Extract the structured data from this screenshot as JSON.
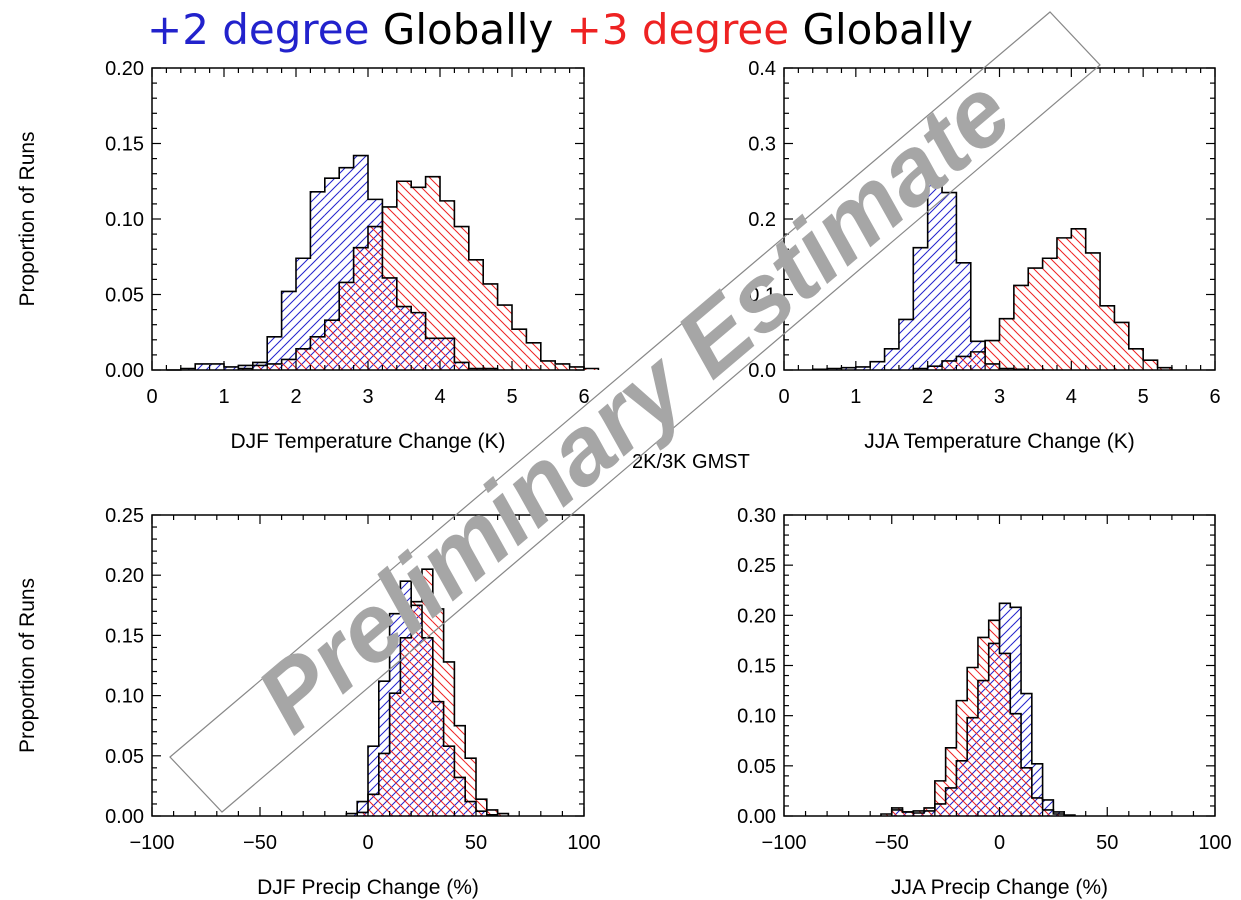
{
  "title": {
    "part1": "+2 degree",
    "part2": " Globally ",
    "part3": "+3 degree",
    "part4": " Globally"
  },
  "colors": {
    "blue": "#2222cc",
    "red": "#ee2222",
    "black": "#000000",
    "purple": "#aa55aa"
  },
  "center_label": "2K/3K GMST",
  "watermark": "Preliminary Estimate",
  "chart_data": [
    {
      "type": "histogram",
      "title": "",
      "xlabel": "DJF Temperature Change (K)",
      "ylabel": "Proportion of Runs",
      "xlim": [
        0,
        6
      ],
      "ylim": [
        0,
        0.2
      ],
      "xticks": [
        0,
        1,
        2,
        3,
        4,
        5,
        6
      ],
      "yticks": [
        0,
        0.05,
        0.1,
        0.15,
        0.2
      ],
      "ytick_labels": [
        "0.00",
        "0.05",
        "0.10",
        "0.15",
        "0.20"
      ],
      "bin_width": 0.2,
      "series": [
        {
          "color": "blue",
          "x_start": 0.2,
          "values": [
            0,
            0.001,
            0.004,
            0.004,
            0.002,
            0.003,
            0.005,
            0.022,
            0.052,
            0.074,
            0.118,
            0.127,
            0.134,
            0.142,
            0.113,
            0.061,
            0.042,
            0.038,
            0.021,
            0.021,
            0.005,
            0.001,
            0.001
          ]
        },
        {
          "color": "red",
          "x_start": 1.2,
          "values": [
            0.001,
            0.003,
            0.004,
            0.007,
            0.014,
            0.022,
            0.033,
            0.058,
            0.081,
            0.095,
            0.108,
            0.125,
            0.121,
            0.128,
            0.112,
            0.095,
            0.073,
            0.057,
            0.043,
            0.027,
            0.018,
            0.006,
            0.004,
            0.002,
            0.001
          ]
        }
      ]
    },
    {
      "type": "histogram",
      "title": "",
      "xlabel": "JJA Temperature Change (K)",
      "ylabel": "",
      "xlim": [
        0,
        6
      ],
      "ylim": [
        0,
        0.4
      ],
      "xticks": [
        0,
        1,
        2,
        3,
        4,
        5,
        6
      ],
      "yticks": [
        0,
        0.1,
        0.2,
        0.3,
        0.4
      ],
      "ytick_labels": [
        "0.0",
        "0.1",
        "0.2",
        "0.3",
        "0.4"
      ],
      "bin_width": 0.2,
      "series": [
        {
          "color": "blue",
          "x_start": 0.4,
          "values": [
            0.001,
            0.002,
            0.003,
            0.004,
            0.011,
            0.028,
            0.067,
            0.162,
            0.247,
            0.235,
            0.142,
            0.038,
            0.008,
            0.002,
            0.001
          ]
        },
        {
          "color": "red",
          "x_start": 1.8,
          "values": [
            0.002,
            0.005,
            0.012,
            0.018,
            0.024,
            0.039,
            0.068,
            0.112,
            0.135,
            0.148,
            0.175,
            0.187,
            0.155,
            0.085,
            0.063,
            0.028,
            0.013,
            0.003
          ]
        }
      ]
    },
    {
      "type": "histogram",
      "title": "",
      "xlabel": "DJF Precip Change (%)",
      "ylabel": "Proportion of Runs",
      "xlim": [
        -100,
        100
      ],
      "ylim": [
        0,
        0.25
      ],
      "xticks": [
        -100,
        -50,
        0,
        50,
        100
      ],
      "yticks": [
        0,
        0.05,
        0.1,
        0.15,
        0.2,
        0.25
      ],
      "ytick_labels": [
        "0.00",
        "0.05",
        "0.10",
        "0.15",
        "0.20",
        "0.25"
      ],
      "bin_width": 5,
      "series": [
        {
          "color": "blue",
          "x_start": -10,
          "values": [
            0.002,
            0.012,
            0.058,
            0.112,
            0.168,
            0.195,
            0.175,
            0.148,
            0.095,
            0.058,
            0.032,
            0.012,
            0.004,
            0.001
          ]
        },
        {
          "color": "red",
          "x_start": -5,
          "values": [
            0.003,
            0.018,
            0.052,
            0.102,
            0.148,
            0.178,
            0.205,
            0.172,
            0.128,
            0.075,
            0.048,
            0.014,
            0.005,
            0.002
          ]
        }
      ]
    },
    {
      "type": "histogram",
      "title": "",
      "xlabel": "JJA Precip Change (%)",
      "ylabel": "",
      "xlim": [
        -100,
        100
      ],
      "ylim": [
        0,
        0.3
      ],
      "xticks": [
        -100,
        -50,
        0,
        50,
        100
      ],
      "yticks": [
        0,
        0.05,
        0.1,
        0.15,
        0.2,
        0.25,
        0.3
      ],
      "ytick_labels": [
        "0.00",
        "0.05",
        "0.10",
        "0.15",
        "0.20",
        "0.25",
        "0.30"
      ],
      "bin_width": 5,
      "series": [
        {
          "color": "blue",
          "x_start": -50,
          "values": [
            0.006,
            0.004,
            0.003,
            0.005,
            0.012,
            0.028,
            0.055,
            0.098,
            0.135,
            0.172,
            0.212,
            0.208,
            0.122,
            0.052,
            0.016,
            0.004,
            0.001
          ]
        },
        {
          "color": "red",
          "x_start": -55,
          "values": [
            0.002,
            0.008,
            0.004,
            0.005,
            0.008,
            0.035,
            0.068,
            0.115,
            0.148,
            0.178,
            0.195,
            0.162,
            0.102,
            0.048,
            0.018,
            0.006,
            0.002
          ]
        }
      ]
    }
  ]
}
